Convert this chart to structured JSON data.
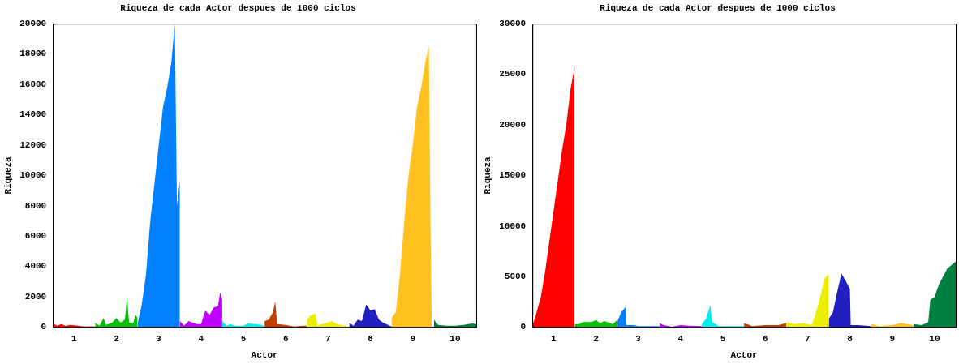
{
  "chart_data": [
    {
      "type": "area",
      "title": "Riqueza de cada Actor despues de 1000 ciclos",
      "xlabel": "Actor",
      "ylabel": "Riqueza",
      "xlim": [
        0.5,
        10.5
      ],
      "xticks": [
        1,
        2,
        3,
        4,
        5,
        6,
        7,
        8,
        9,
        10
      ],
      "ylim": [
        0,
        20000
      ],
      "yticks": [
        0,
        2000,
        4000,
        6000,
        8000,
        10000,
        12000,
        14000,
        16000,
        18000,
        20000
      ],
      "series": [
        {
          "color": "#ff0000",
          "x": [
            0.5,
            0.6,
            0.7,
            0.8,
            0.9,
            1.0,
            1.1,
            1.2,
            1.3,
            1.4,
            1.5
          ],
          "values": [
            250,
            100,
            200,
            80,
            150,
            120,
            100,
            60,
            50,
            60,
            50
          ]
        },
        {
          "color": "#00c000",
          "x": [
            1.5,
            1.6,
            1.7,
            1.75,
            1.9,
            2.0,
            2.1,
            2.2,
            2.25,
            2.3,
            2.4,
            2.45,
            2.5
          ],
          "values": [
            300,
            100,
            600,
            150,
            300,
            600,
            300,
            500,
            2000,
            300,
            300,
            800,
            600
          ]
        },
        {
          "color": "#0080ff",
          "x": [
            2.5,
            2.6,
            2.7,
            2.8,
            2.9,
            3.0,
            3.1,
            3.2,
            3.3,
            3.38,
            3.43,
            3.5
          ],
          "values": [
            200,
            1500,
            3500,
            7000,
            9500,
            12000,
            14500,
            15800,
            17500,
            20000,
            8000,
            9700
          ]
        },
        {
          "color": "#c000ff",
          "x": [
            3.5,
            3.6,
            3.7,
            3.8,
            3.9,
            4.0,
            4.1,
            4.2,
            4.3,
            4.4,
            4.45,
            4.5
          ],
          "values": [
            400,
            100,
            400,
            300,
            200,
            200,
            1100,
            800,
            1300,
            1400,
            2300,
            1800
          ]
        },
        {
          "color": "#00eeee",
          "x": [
            4.5,
            4.6,
            4.7,
            4.8,
            5.0,
            5.1,
            5.3,
            5.5
          ],
          "values": [
            400,
            100,
            200,
            100,
            100,
            250,
            200,
            100
          ]
        },
        {
          "color": "#c04000",
          "x": [
            5.5,
            5.6,
            5.7,
            5.75,
            5.8,
            6.0,
            6.2,
            6.4,
            6.5
          ],
          "values": [
            400,
            500,
            1000,
            1700,
            200,
            150,
            50,
            100,
            100
          ]
        },
        {
          "color": "#eeee00",
          "x": [
            6.5,
            6.6,
            6.7,
            6.75,
            6.9,
            7.1,
            7.2,
            7.4,
            7.5
          ],
          "values": [
            500,
            800,
            900,
            100,
            250,
            400,
            200,
            100,
            50
          ]
        },
        {
          "color": "#2020c0",
          "x": [
            7.5,
            7.6,
            7.7,
            7.8,
            7.9,
            8.0,
            8.1,
            8.2,
            8.3,
            8.5
          ],
          "values": [
            300,
            100,
            500,
            400,
            1500,
            1100,
            1200,
            500,
            300,
            50
          ]
        },
        {
          "color": "#ffc020",
          "x": [
            8.5,
            8.6,
            8.7,
            8.8,
            8.9,
            9.0,
            9.1,
            9.2,
            9.3,
            9.38,
            9.42,
            9.45
          ],
          "values": [
            600,
            1000,
            3500,
            7000,
            10000,
            12000,
            14500,
            15800,
            17500,
            18500,
            6500,
            0
          ]
        },
        {
          "color": "#008040",
          "x": [
            9.5,
            9.6,
            9.8,
            10.0,
            10.2,
            10.4,
            10.5
          ],
          "values": [
            500,
            150,
            100,
            100,
            150,
            250,
            200
          ]
        }
      ]
    },
    {
      "type": "area",
      "title": "Riqueza de cada Actor despues de 1000 ciclos",
      "xlabel": "Actor",
      "ylabel": "Riqueza",
      "xlim": [
        0.5,
        10.5
      ],
      "xticks": [
        1,
        2,
        3,
        4,
        5,
        6,
        7,
        8,
        9,
        10
      ],
      "ylim": [
        0,
        30000
      ],
      "yticks": [
        0,
        5000,
        10000,
        15000,
        20000,
        25000,
        30000
      ],
      "series": [
        {
          "color": "#ff0000",
          "x": [
            0.5,
            0.6,
            0.7,
            0.8,
            0.9,
            1.0,
            1.1,
            1.2,
            1.3,
            1.4,
            1.5
          ],
          "values": [
            100,
            1500,
            3000,
            5500,
            8500,
            11500,
            14500,
            17500,
            20000,
            23500,
            25800
          ]
        },
        {
          "color": "#00c000",
          "x": [
            1.5,
            1.6,
            1.7,
            1.9,
            2.0,
            2.1,
            2.2,
            2.4,
            2.5
          ],
          "values": [
            300,
            300,
            500,
            500,
            700,
            400,
            600,
            300,
            700
          ]
        },
        {
          "color": "#0080ff",
          "x": [
            2.5,
            2.6,
            2.7,
            2.72,
            2.9,
            3.0,
            3.3,
            3.5
          ],
          "values": [
            500,
            1500,
            2000,
            200,
            200,
            100,
            100,
            100
          ]
        },
        {
          "color": "#c000ff",
          "x": [
            3.5,
            3.6,
            3.8,
            4.0,
            4.2,
            4.5
          ],
          "values": [
            400,
            200,
            50,
            200,
            150,
            100
          ]
        },
        {
          "color": "#00eeee",
          "x": [
            4.5,
            4.6,
            4.7,
            4.75,
            4.9,
            5.2,
            5.5
          ],
          "values": [
            300,
            800,
            2200,
            500,
            100,
            100,
            100
          ]
        },
        {
          "color": "#c04000",
          "x": [
            5.5,
            5.7,
            6.0,
            6.3,
            6.5
          ],
          "values": [
            400,
            100,
            200,
            200,
            400
          ]
        },
        {
          "color": "#eeee00",
          "x": [
            6.5,
            6.7,
            6.9,
            7.1,
            7.2,
            7.3,
            7.4,
            7.5
          ],
          "values": [
            500,
            300,
            400,
            200,
            1500,
            3000,
            4800,
            5300
          ]
        },
        {
          "color": "#2020c0",
          "x": [
            7.5,
            7.6,
            7.7,
            7.8,
            7.9,
            8.0,
            8.02,
            8.2,
            8.5
          ],
          "values": [
            800,
            1500,
            3500,
            5300,
            4600,
            3800,
            200,
            200,
            100
          ]
        },
        {
          "color": "#ffc020",
          "x": [
            8.5,
            8.7,
            9.0,
            9.2,
            9.5
          ],
          "values": [
            300,
            100,
            200,
            400,
            200
          ]
        },
        {
          "color": "#008040",
          "x": [
            9.5,
            9.7,
            9.85,
            9.9,
            10.0,
            10.1,
            10.3,
            10.5
          ],
          "values": [
            300,
            200,
            500,
            2700,
            3000,
            4200,
            5800,
            6500
          ]
        }
      ]
    }
  ]
}
